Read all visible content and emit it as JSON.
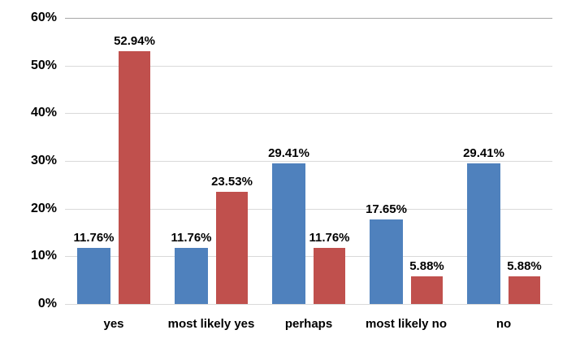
{
  "chart_data": {
    "type": "bar",
    "title": "",
    "xlabel": "",
    "ylabel": "",
    "categories": [
      "yes",
      "most likely yes",
      "perhaps",
      "most likely no",
      "no"
    ],
    "series": [
      {
        "name": "blue",
        "color": "#4F81BD",
        "values": [
          11.76,
          11.76,
          29.41,
          17.65,
          29.41
        ],
        "data_labels": [
          "11.76%",
          "11.76%",
          "29.41%",
          "17.65%",
          "29.41%"
        ]
      },
      {
        "name": "red",
        "color": "#C0504D",
        "values": [
          52.94,
          23.53,
          11.76,
          5.88,
          5.88
        ],
        "data_labels": [
          "52.94%",
          "23.53%",
          "11.76%",
          "5.88%",
          "5.88%"
        ]
      }
    ],
    "ylim": [
      0,
      60
    ],
    "yticks": [
      {
        "value": 0,
        "label": "0%"
      },
      {
        "value": 10,
        "label": "10%"
      },
      {
        "value": 20,
        "label": "20%"
      },
      {
        "value": 30,
        "label": "30%"
      },
      {
        "value": 40,
        "label": "40%"
      },
      {
        "value": 50,
        "label": "50%"
      },
      {
        "value": 60,
        "label": "60%"
      }
    ],
    "grid": true,
    "legend": false,
    "data_labels_shown": true
  },
  "colors": {
    "background": "#FFFFFF",
    "gridline": "#D9D9D9",
    "gridline_top": "#A6A6A6",
    "text": "#000000"
  }
}
